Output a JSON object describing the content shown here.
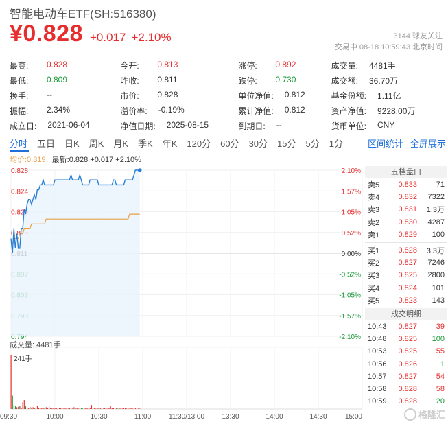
{
  "header": {
    "title": "智能电动车ETF(SH:516380)",
    "price": "¥0.828",
    "change": "+0.017",
    "change_pct": "+2.10%",
    "follow": "3144  球友关注",
    "status": "交易中  08-18 10:59:43 北京时间"
  },
  "stats": [
    [
      {
        "label": "最高:",
        "value": "0.828",
        "color": "red"
      },
      {
        "label": "今开:",
        "value": "0.813",
        "color": "red"
      },
      {
        "label": "涨停:",
        "value": "0.892",
        "color": "red"
      },
      {
        "label": "成交量:",
        "value": "4481手",
        "color": "dark"
      }
    ],
    [
      {
        "label": "最低:",
        "value": "0.809",
        "color": "green"
      },
      {
        "label": "昨收:",
        "value": "0.811",
        "color": "dark"
      },
      {
        "label": "跌停:",
        "value": "0.730",
        "color": "green"
      },
      {
        "label": "成交额:",
        "value": "36.70万",
        "color": "dark"
      }
    ],
    [
      {
        "label": "换手:",
        "value": "--",
        "color": "dark"
      },
      {
        "label": "市价:",
        "value": "0.828",
        "color": "dark"
      },
      {
        "label": "单位净值:",
        "value": "0.812",
        "color": "dark"
      },
      {
        "label": "基金份额:",
        "value": "1.11亿",
        "color": "dark"
      }
    ],
    [
      {
        "label": "振幅:",
        "value": "2.34%",
        "color": "dark"
      },
      {
        "label": "溢价率:",
        "value": "-0.19%",
        "color": "dark"
      },
      {
        "label": "累计净值:",
        "value": "0.812",
        "color": "dark"
      },
      {
        "label": "资产净值:",
        "value": "9228.00万",
        "color": "dark"
      }
    ],
    [
      {
        "label": "成立日:",
        "value": "2021-06-04",
        "color": "dark"
      },
      {
        "label": "净值日期:",
        "value": "2025-08-15",
        "color": "dark"
      },
      {
        "label": "到期日:",
        "value": "--",
        "color": "dark"
      },
      {
        "label": "货币单位:",
        "value": "CNY",
        "color": "dark"
      }
    ]
  ],
  "tabs": [
    "分时",
    "五日",
    "日K",
    "周K",
    "月K",
    "季K",
    "年K",
    "120分",
    "60分",
    "30分",
    "15分",
    "5分",
    "1分"
  ],
  "tabs_right": [
    "区间统计",
    "全屏展示"
  ],
  "legend": {
    "avg": "均价:0.819",
    "new": "最新:0.828 +0.017 +2.10%"
  },
  "chart_data": {
    "type": "line",
    "price_ticks": [
      "0.828",
      "0.824",
      "0.820",
      "0.815",
      "0.811",
      "0.807",
      "0.803",
      "0.798",
      "0.794"
    ],
    "pct_ticks": [
      "2.10%",
      "1.57%",
      "1.05%",
      "0.52%",
      "0.00%",
      "-0.52%",
      "-1.05%",
      "-1.57%",
      "-2.10%"
    ],
    "ylim": [
      0.794,
      0.828
    ],
    "prev_close": 0.811,
    "time_ticks": [
      "09:30",
      "10:00",
      "10:30",
      "11:00",
      "11:30/13:00",
      "13:30",
      "14:00",
      "14:30",
      "15:00"
    ],
    "price_series": [
      0.814,
      0.811,
      0.816,
      0.812,
      0.815,
      0.812,
      0.812,
      0.816,
      0.816,
      0.82,
      0.819,
      0.821,
      0.822,
      0.822,
      0.821,
      0.822,
      0.823,
      0.822,
      0.824,
      0.824,
      0.825,
      0.825,
      0.826,
      0.825,
      0.825,
      0.825,
      0.825,
      0.825,
      0.825,
      0.825,
      0.826,
      0.826,
      0.826,
      0.826,
      0.826,
      0.826,
      0.826,
      0.826,
      0.826,
      0.826,
      0.826,
      0.827,
      0.826,
      0.826,
      0.826,
      0.826,
      0.826,
      0.827,
      0.826,
      0.825,
      0.825,
      0.825,
      0.825,
      0.825,
      0.826,
      0.826,
      0.826,
      0.826,
      0.826,
      0.826,
      0.825,
      0.825,
      0.825,
      0.825,
      0.825,
      0.825,
      0.825,
      0.825,
      0.825,
      0.825,
      0.826,
      0.826,
      0.825,
      0.825,
      0.825,
      0.825,
      0.825,
      0.825,
      0.826,
      0.826,
      0.826,
      0.826,
      0.826,
      0.826,
      0.827,
      0.828,
      0.828,
      0.828,
      0.828
    ],
    "avg_series": [
      0.813,
      0.813,
      0.814,
      0.814,
      0.814,
      0.814,
      0.815,
      0.815,
      0.815,
      0.816,
      0.816,
      0.816,
      0.816,
      0.816,
      0.817,
      0.817,
      0.817,
      0.817,
      0.817,
      0.817,
      0.817,
      0.817,
      0.817,
      0.817,
      0.818,
      0.818,
      0.818,
      0.818,
      0.818,
      0.818,
      0.818,
      0.818,
      0.818,
      0.818,
      0.818,
      0.818,
      0.818,
      0.818,
      0.818,
      0.818,
      0.818,
      0.818,
      0.818,
      0.818,
      0.818,
      0.818,
      0.818,
      0.818,
      0.818,
      0.818,
      0.818,
      0.818,
      0.818,
      0.818,
      0.818,
      0.818,
      0.818,
      0.818,
      0.818,
      0.818,
      0.818,
      0.818,
      0.818,
      0.818,
      0.818,
      0.818,
      0.818,
      0.818,
      0.818,
      0.818,
      0.818,
      0.818,
      0.818,
      0.818,
      0.818,
      0.818,
      0.818,
      0.818,
      0.818,
      0.818,
      0.818,
      0.819,
      0.819,
      0.819,
      0.819,
      0.819,
      0.819,
      0.819,
      0.819
    ],
    "volume_label": "成交量: 4481手",
    "volume_max_label": "241手",
    "volumes": [
      241,
      60,
      18,
      12,
      8,
      10,
      14,
      6,
      30,
      40,
      12,
      8,
      6,
      10,
      4,
      8,
      6,
      4,
      14,
      6,
      4,
      5,
      6,
      3,
      8,
      5,
      12,
      4,
      3,
      4,
      5,
      3,
      2,
      4,
      3,
      6,
      2,
      3,
      4,
      2,
      3,
      5,
      2,
      8,
      3,
      4,
      2,
      3,
      5,
      2,
      6,
      4,
      3,
      2,
      3,
      18,
      4,
      3,
      2,
      3,
      6,
      5,
      3,
      2,
      4,
      3,
      2,
      5,
      12,
      4,
      3,
      2,
      3,
      2,
      4,
      3,
      2,
      3,
      4,
      2,
      3,
      2,
      3,
      2,
      3,
      4,
      3,
      2,
      2
    ]
  },
  "orderbook": {
    "title": "五档盘口",
    "rows": [
      {
        "label": "卖5",
        "price": "0.833",
        "vol": "71"
      },
      {
        "label": "卖4",
        "price": "0.832",
        "vol": "7322"
      },
      {
        "label": "卖3",
        "price": "0.831",
        "vol": "1.3万"
      },
      {
        "label": "卖2",
        "price": "0.830",
        "vol": "4287"
      },
      {
        "label": "卖1",
        "price": "0.829",
        "vol": "100"
      },
      {
        "label": "买1",
        "price": "0.828",
        "vol": "3.3万"
      },
      {
        "label": "买2",
        "price": "0.827",
        "vol": "7246"
      },
      {
        "label": "买3",
        "price": "0.825",
        "vol": "2800"
      },
      {
        "label": "买4",
        "price": "0.824",
        "vol": "101"
      },
      {
        "label": "买5",
        "price": "0.823",
        "vol": "143"
      }
    ],
    "trades_title": "成交明细",
    "trades": [
      {
        "time": "10:43",
        "price": "0.827",
        "vol": "39",
        "dir": "red"
      },
      {
        "time": "10:48",
        "price": "0.825",
        "vol": "100",
        "dir": "green"
      },
      {
        "time": "10:53",
        "price": "0.825",
        "vol": "55",
        "dir": "red"
      },
      {
        "time": "10:56",
        "price": "0.826",
        "vol": "1",
        "dir": "green"
      },
      {
        "time": "10:57",
        "price": "0.827",
        "vol": "54",
        "dir": "red"
      },
      {
        "time": "10:58",
        "price": "0.828",
        "vol": "58",
        "dir": "red"
      },
      {
        "time": "10:59",
        "price": "0.828",
        "vol": "20",
        "dir": "green"
      }
    ]
  },
  "colors": {
    "red": "#e62e2e",
    "green": "#1a9a3a",
    "blue": "#1e6fd9",
    "avg": "#e8a04a"
  },
  "logo": "格隆汇"
}
